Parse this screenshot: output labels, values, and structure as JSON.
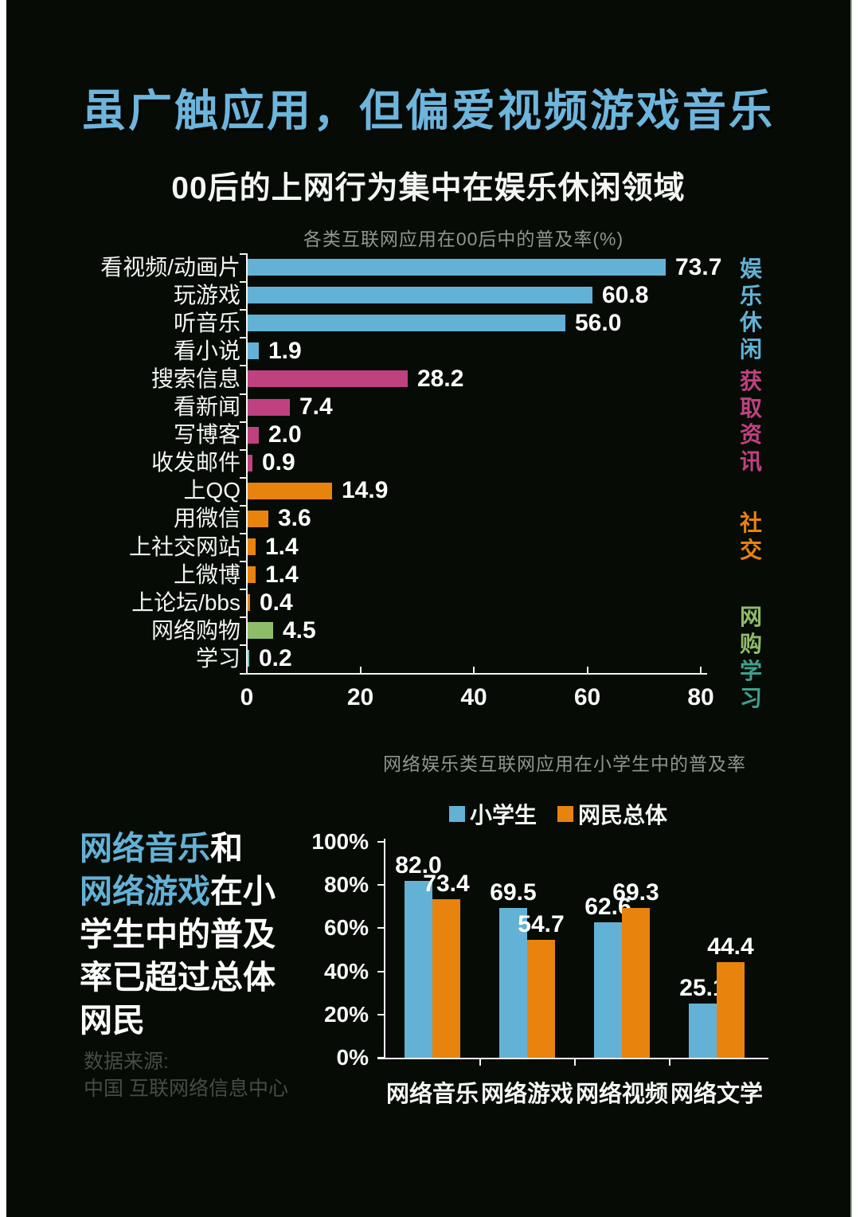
{
  "header": {
    "title": "虽广触应用，但偏爱视频游戏音乐",
    "subtitle": "00后的上网行为集中在娱乐休闲领域"
  },
  "footer": {
    "source_label": "数据来源:",
    "source_name": "中国 互联网络信息中心"
  },
  "colors": {
    "background": "#060b06",
    "title_blue": "#6cb5dc",
    "bar_blue": "#64b1d6",
    "bar_pink": "#bf4180",
    "bar_orange": "#e8830e",
    "bar_green": "#8fbc69",
    "bar_teal": "#7cc5c0",
    "label_teal": "#3fa08c",
    "axis_white": "#f2f5f2",
    "muted_gray": "#8f958f",
    "source_gray": "#454c45"
  },
  "callout": {
    "lines": [
      [
        {
          "text": "网络音乐",
          "color": "#64b1d6"
        },
        {
          "text": "和",
          "color": "#ffffff"
        }
      ],
      [
        {
          "text": "网络游戏",
          "color": "#64b1d6"
        },
        {
          "text": "在小",
          "color": "#ffffff"
        }
      ],
      [
        {
          "text": "学生中的普及",
          "color": "#ffffff"
        }
      ],
      [
        {
          "text": "率已超过总体",
          "color": "#ffffff"
        }
      ],
      [
        {
          "text": "网民",
          "color": "#ffffff"
        }
      ]
    ]
  },
  "chart_data": [
    {
      "type": "bar",
      "orientation": "horizontal",
      "title": "各类互联网应用在00后中的普及率(%)",
      "xlabel": "",
      "ylabel": "",
      "xlim": [
        0,
        80
      ],
      "xticks": [
        0,
        20,
        40,
        60,
        80
      ],
      "grid": false,
      "categories": [
        "看视频/动画片",
        "玩游戏",
        "听音乐",
        "看小说",
        "搜索信息",
        "看新闻",
        "写博客",
        "收发邮件",
        "上QQ",
        "用微信",
        "上社交网站",
        "上微博",
        "上论坛/bbs",
        "网络购物",
        "学习"
      ],
      "values": [
        73.7,
        60.8,
        56.0,
        1.9,
        28.2,
        7.4,
        2.0,
        0.9,
        14.9,
        3.6,
        1.4,
        1.4,
        0.4,
        4.5,
        0.2
      ],
      "bar_color_keys": [
        "bar_blue",
        "bar_blue",
        "bar_blue",
        "bar_blue",
        "bar_pink",
        "bar_pink",
        "bar_pink",
        "bar_pink",
        "bar_orange",
        "bar_orange",
        "bar_orange",
        "bar_orange",
        "bar_orange",
        "bar_green",
        "bar_teal"
      ],
      "category_groups": [
        {
          "label": "娱乐休闲",
          "color_key": "bar_blue",
          "rows": "1-4"
        },
        {
          "label": "获取资讯",
          "color_key": "bar_pink",
          "rows": "5-8"
        },
        {
          "label": "社交",
          "color_key": "bar_orange",
          "rows": "9-13"
        },
        {
          "label": "网购",
          "color_key": "bar_green",
          "rows": "14"
        },
        {
          "label": "学习",
          "color_key": "label_teal",
          "rows": "15"
        }
      ]
    },
    {
      "type": "bar",
      "orientation": "vertical",
      "title": "网络娱乐类互联网应用在小学生中的普及率",
      "xlabel": "",
      "ylabel": "",
      "ylim": [
        0,
        100
      ],
      "ytick_labels": [
        "100%",
        "80%",
        "60%",
        "40%",
        "20%",
        "0%"
      ],
      "grid": false,
      "legend_position": "top",
      "categories": [
        "网络音乐",
        "网络游戏",
        "网络视频",
        "网络文学"
      ],
      "series": [
        {
          "name": "小学生",
          "color_key": "bar_blue",
          "values": [
            82.0,
            69.5,
            62.6,
            25.1
          ]
        },
        {
          "name": "网民总体",
          "color_key": "bar_orange",
          "values": [
            73.4,
            54.7,
            69.3,
            44.4
          ]
        }
      ]
    }
  ]
}
